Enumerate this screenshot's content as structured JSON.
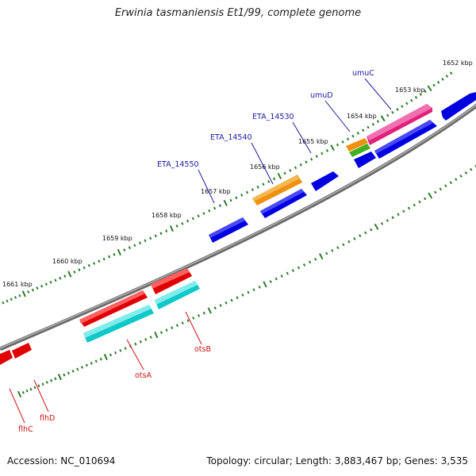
{
  "title": "Erwinia tasmaniensis Et1/99, complete genome",
  "footer": {
    "accession": "Accession: NC_010694",
    "summary": "Topology: circular; Length: 3,883,467 bp; Genes: 3,535"
  },
  "colors": {
    "backbone": "#8a8a8a",
    "tick": "#2a7a2a",
    "blue_label": "#1a1aa0",
    "red_label": "#cc1111",
    "forward_gene": "#0000e0",
    "reverse_gene": "#e00000",
    "cyan": "#10c8c8",
    "orange": "#f09010",
    "magenta": "#e0207a",
    "green": "#40b020"
  },
  "scale_labels": [
    "1652 kbp",
    "1653 kbp",
    "1654 kbp",
    "1655 kbp",
    "1656 kbp",
    "1657 kbp",
    "1658 kbp",
    "1659 kbp",
    "1660 kbp",
    "1661 kbp"
  ],
  "gene_labels_top": [
    {
      "name": "umuC",
      "color": "blue"
    },
    {
      "name": "umuD",
      "color": "blue"
    },
    {
      "name": "ETA_14530",
      "color": "blue"
    },
    {
      "name": "ETA_14540",
      "color": "blue"
    },
    {
      "name": "ETA_14550",
      "color": "blue"
    }
  ],
  "gene_labels_bottom": [
    {
      "name": "otsB",
      "color": "red"
    },
    {
      "name": "otsA",
      "color": "red"
    },
    {
      "name": "flhD",
      "color": "red"
    },
    {
      "name": "flhC",
      "color": "red"
    }
  ]
}
